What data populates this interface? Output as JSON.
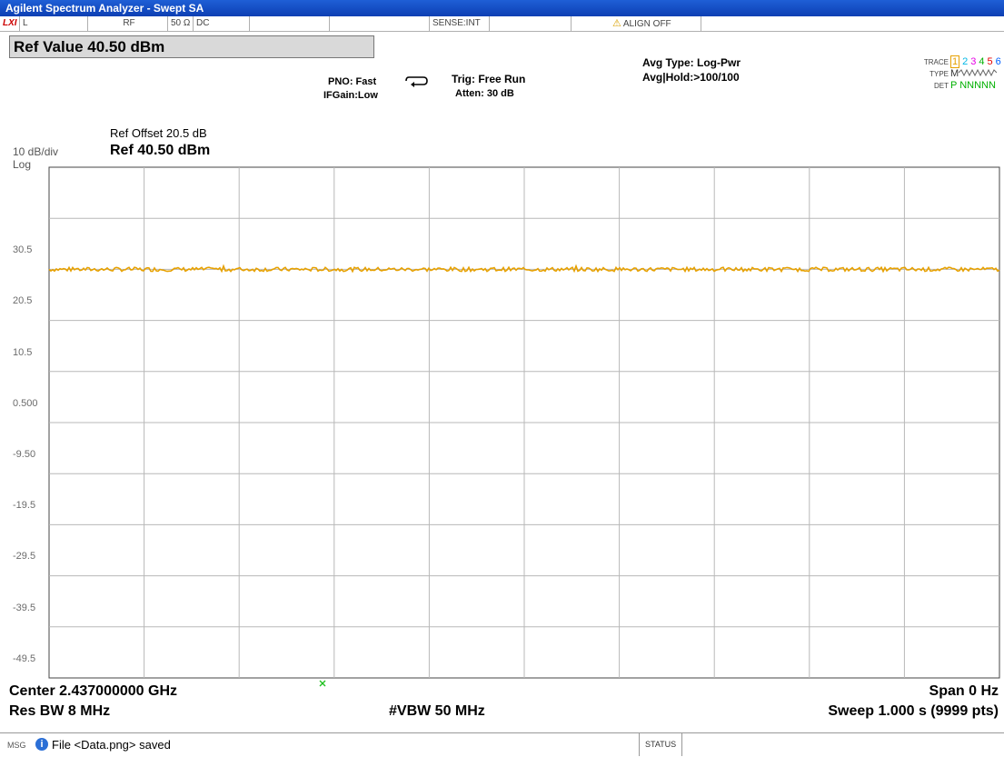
{
  "window": {
    "title": "Agilent Spectrum Analyzer - Swept SA"
  },
  "status_bar": {
    "lxi": "LXI",
    "coupling_l": "L",
    "rf": "RF",
    "impedance": "50 Ω",
    "dc": "DC",
    "sense": "SENSE:INT",
    "align": "ALIGN OFF"
  },
  "ref_value_box": "Ref Value 40.50 dBm",
  "settings": {
    "pno": "PNO: Fast",
    "ifgain": "IFGain:Low",
    "trig": "Trig: Free Run",
    "atten": "Atten: 30 dB",
    "avg_type": "Avg Type: Log-Pwr",
    "avg_hold": "Avg|Hold:>100/100"
  },
  "trace_info": {
    "trace_label": "TRACE",
    "trace_numbers": [
      "1",
      "2",
      "3",
      "4",
      "5",
      "6"
    ],
    "trace_colors": [
      "#e6a000",
      "#00b7e6",
      "#e600e6",
      "#00b000",
      "#e60000",
      "#0060ff"
    ],
    "type_label": "TYPE",
    "type_value": "M",
    "det_label": "DET",
    "det_value": "P NNNNN"
  },
  "scale": {
    "ref_offset": "Ref Offset 20.5 dB",
    "ref_level": "Ref 40.50 dBm",
    "per_div": "10 dB/div",
    "log": "Log"
  },
  "footer": {
    "center": "Center 2.437000000 GHz",
    "span": "Span 0 Hz",
    "res_bw": "Res BW 8 MHz",
    "vbw": "#VBW 50 MHz",
    "sweep": "Sweep  1.000 s (9999 pts)"
  },
  "message_bar": {
    "msg_label": "MSG",
    "message": "File <Data.png> saved",
    "status_label": "STATUS"
  },
  "chart_data": {
    "type": "line",
    "title": "",
    "xlabel": "",
    "ylabel": "",
    "y_unit": "dBm",
    "ylim": [
      -59.5,
      40.5
    ],
    "xlim": [
      0,
      1
    ],
    "y_ticks": [
      "30.5",
      "20.5",
      "10.5",
      "0.500",
      "-9.50",
      "-19.5",
      "-29.5",
      "-39.5",
      "-49.5"
    ],
    "y_tick_values": [
      30.5,
      20.5,
      10.5,
      0.5,
      -9.5,
      -19.5,
      -29.5,
      -39.5,
      -49.5
    ],
    "grid": true,
    "x_divisions": 10,
    "y_divisions": 10,
    "series": [
      {
        "color": "#e6a000",
        "level": 20.5,
        "noise": 0.4
      }
    ]
  }
}
